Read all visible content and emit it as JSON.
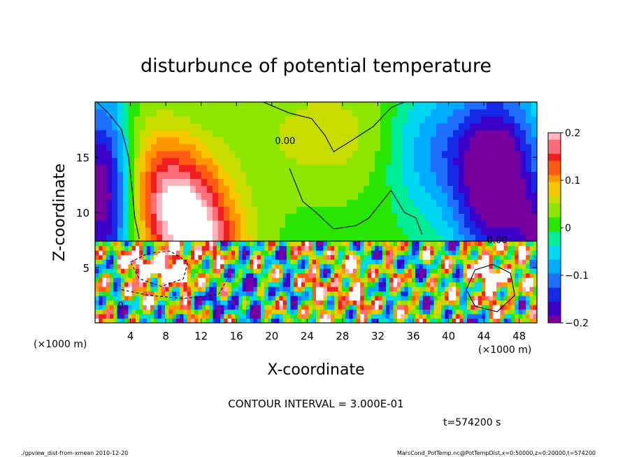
{
  "chart_data": {
    "type": "heatmap",
    "title": "disturbunce of potential temperature",
    "xlabel": "X-coordinate",
    "ylabel": "Z-coordinate",
    "x_unit": "(×1000 m)",
    "y_unit": "(×1000 m)",
    "xlim": [
      0,
      50
    ],
    "ylim": [
      0,
      20
    ],
    "x_ticks": [
      4,
      8,
      12,
      16,
      20,
      24,
      28,
      32,
      36,
      40,
      44,
      48
    ],
    "y_ticks": [
      5,
      10,
      15
    ],
    "colorbar": {
      "min": -0.2,
      "max": 0.2,
      "tick_labels": [
        "0.2",
        "0.1",
        "0",
        "−0.1",
        "−0.2"
      ],
      "tick_values": [
        0.2,
        0.1,
        0,
        -0.1,
        -0.2
      ]
    },
    "contour_labels": [
      "0.00",
      "0.00",
      "0"
    ],
    "contour_interval_text": "CONTOUR INTERVAL = 3.000E-01",
    "time_text": "t=574200 s",
    "colors": {
      "warm_max": "#ffffff",
      "neutral": "#2be600",
      "cool_max": "#8a00c8"
    }
  },
  "footer": {
    "left": "./gpview_dist-from-xmean   2010-12-20",
    "right": "MarsCond_PotTemp.nc@PotTempDist,x=0:50000,z=0:20000,t=574200"
  }
}
